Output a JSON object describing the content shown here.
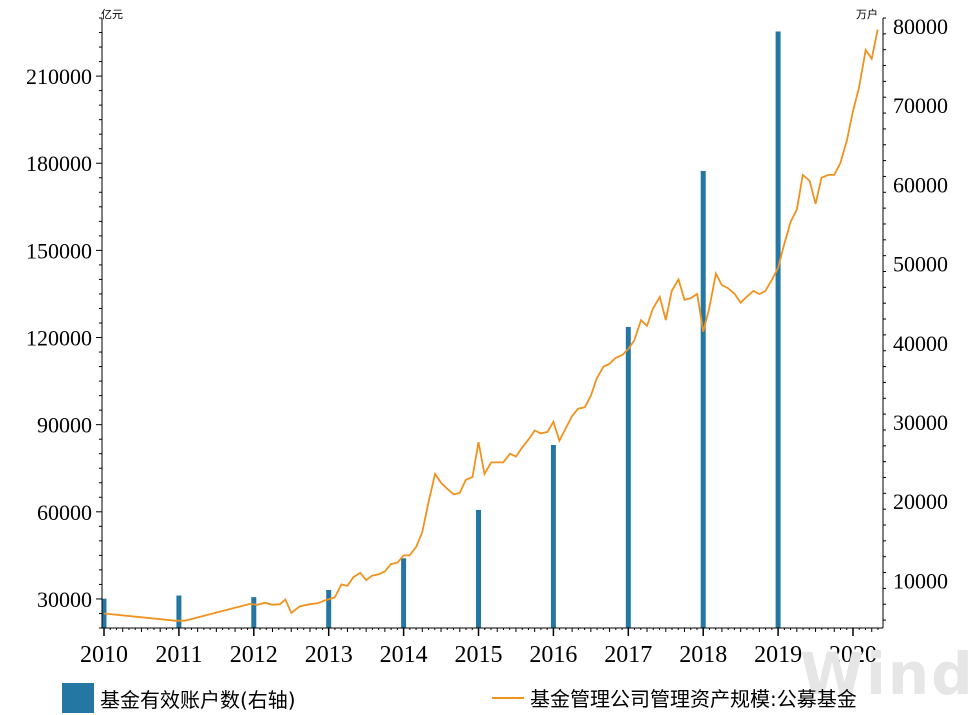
{
  "units": {
    "left": "亿元",
    "right": "万户"
  },
  "watermark": "Wind",
  "colors": {
    "bar": "#2477a3",
    "line": "#f0921e",
    "axis": "#000000"
  },
  "legend": [
    {
      "label": "基金有效账户数(右轴)",
      "kind": "bar"
    },
    {
      "label": "基金管理公司管理资产规模:公募基金",
      "kind": "line"
    }
  ],
  "chart_data": {
    "type": "bar+line",
    "grid": false,
    "legend_position": "bottom",
    "x_ticks": [
      "2010",
      "2011",
      "2012",
      "2013",
      "2014",
      "2015",
      "2016",
      "2017",
      "2018",
      "2019",
      "2020"
    ],
    "y_left": {
      "range": [
        20000,
        230000
      ],
      "ticks": [
        30000,
        60000,
        90000,
        120000,
        150000,
        180000,
        210000
      ]
    },
    "y_right": {
      "range": [
        4000,
        81000
      ],
      "ticks": [
        10000,
        20000,
        30000,
        40000,
        50000,
        60000,
        70000,
        80000
      ]
    },
    "series": [
      {
        "name": "基金有效账户数(右轴)",
        "type": "bar",
        "axis": "right",
        "x": [
          2010.0,
          2011.0,
          2012.0,
          2013.0,
          2014.0,
          2015.0,
          2016.0,
          2017.0,
          2018.0,
          2019.0
        ],
        "values": [
          7700,
          8100,
          7900,
          8800,
          12800,
          18900,
          27100,
          42000,
          61700,
          79300
        ]
      },
      {
        "name": "基金管理公司管理资产规模:公募基金",
        "type": "line",
        "axis": "left",
        "points": [
          [
            2010.0,
            25000
          ],
          [
            2010.95,
            22500
          ],
          [
            2011.08,
            22500
          ],
          [
            2011.6,
            26000
          ],
          [
            2011.95,
            28300
          ],
          [
            2012.05,
            28000
          ],
          [
            2012.15,
            28700
          ],
          [
            2012.25,
            28000
          ],
          [
            2012.35,
            28200
          ],
          [
            2012.42,
            29800
          ],
          [
            2012.5,
            25200
          ],
          [
            2012.62,
            27500
          ],
          [
            2012.75,
            28200
          ],
          [
            2012.85,
            28500
          ],
          [
            2012.95,
            29500
          ],
          [
            2013.08,
            30500
          ],
          [
            2013.17,
            35000
          ],
          [
            2013.25,
            34500
          ],
          [
            2013.33,
            37500
          ],
          [
            2013.42,
            39000
          ],
          [
            2013.5,
            36500
          ],
          [
            2013.58,
            38000
          ],
          [
            2013.67,
            38500
          ],
          [
            2013.75,
            39500
          ],
          [
            2013.83,
            42000
          ],
          [
            2013.92,
            42500
          ],
          [
            2014.0,
            45000
          ],
          [
            2014.08,
            45000
          ],
          [
            2014.17,
            48000
          ],
          [
            2014.25,
            53000
          ],
          [
            2014.33,
            63000
          ],
          [
            2014.42,
            73000
          ],
          [
            2014.5,
            70000
          ],
          [
            2014.58,
            68000
          ],
          [
            2014.67,
            66000
          ],
          [
            2014.75,
            66500
          ],
          [
            2014.83,
            71000
          ],
          [
            2014.92,
            72000
          ],
          [
            2015.0,
            84000
          ],
          [
            2015.08,
            73000
          ],
          [
            2015.17,
            77000
          ],
          [
            2015.25,
            77000
          ],
          [
            2015.33,
            77000
          ],
          [
            2015.42,
            80000
          ],
          [
            2015.5,
            79000
          ],
          [
            2015.58,
            82000
          ],
          [
            2015.67,
            85000
          ],
          [
            2015.75,
            88000
          ],
          [
            2015.83,
            87000
          ],
          [
            2015.92,
            87500
          ],
          [
            2016.0,
            91000
          ],
          [
            2016.08,
            84500
          ],
          [
            2016.17,
            89000
          ],
          [
            2016.25,
            93000
          ],
          [
            2016.33,
            95500
          ],
          [
            2016.42,
            96000
          ],
          [
            2016.5,
            100000
          ],
          [
            2016.58,
            106000
          ],
          [
            2016.67,
            110000
          ],
          [
            2016.75,
            111000
          ],
          [
            2016.83,
            113000
          ],
          [
            2016.92,
            114000
          ],
          [
            2017.0,
            116000
          ],
          [
            2017.08,
            119000
          ],
          [
            2017.17,
            126000
          ],
          [
            2017.25,
            124000
          ],
          [
            2017.33,
            130000
          ],
          [
            2017.42,
            134000
          ],
          [
            2017.5,
            126000
          ],
          [
            2017.58,
            136000
          ],
          [
            2017.67,
            140000
          ],
          [
            2017.75,
            133000
          ],
          [
            2017.83,
            133500
          ],
          [
            2017.92,
            135000
          ],
          [
            2018.0,
            122000
          ],
          [
            2018.08,
            130000
          ],
          [
            2018.17,
            142000
          ],
          [
            2018.25,
            138000
          ],
          [
            2018.33,
            137000
          ],
          [
            2018.42,
            135000
          ],
          [
            2018.5,
            132000
          ],
          [
            2018.58,
            134000
          ],
          [
            2018.67,
            136000
          ],
          [
            2018.75,
            135000
          ],
          [
            2018.83,
            136000
          ],
          [
            2018.92,
            140000
          ],
          [
            2019.0,
            144000
          ],
          [
            2019.08,
            152000
          ],
          [
            2019.17,
            160000
          ],
          [
            2019.25,
            164000
          ],
          [
            2019.33,
            176000
          ],
          [
            2019.42,
            174000
          ],
          [
            2019.5,
            166000
          ],
          [
            2019.58,
            175000
          ],
          [
            2019.67,
            176000
          ],
          [
            2019.75,
            176000
          ],
          [
            2019.83,
            180000
          ],
          [
            2019.92,
            188000
          ],
          [
            2020.0,
            198000
          ],
          [
            2020.08,
            206000
          ],
          [
            2020.17,
            219000
          ],
          [
            2020.25,
            216000
          ],
          [
            2020.33,
            226000
          ]
        ]
      }
    ]
  }
}
